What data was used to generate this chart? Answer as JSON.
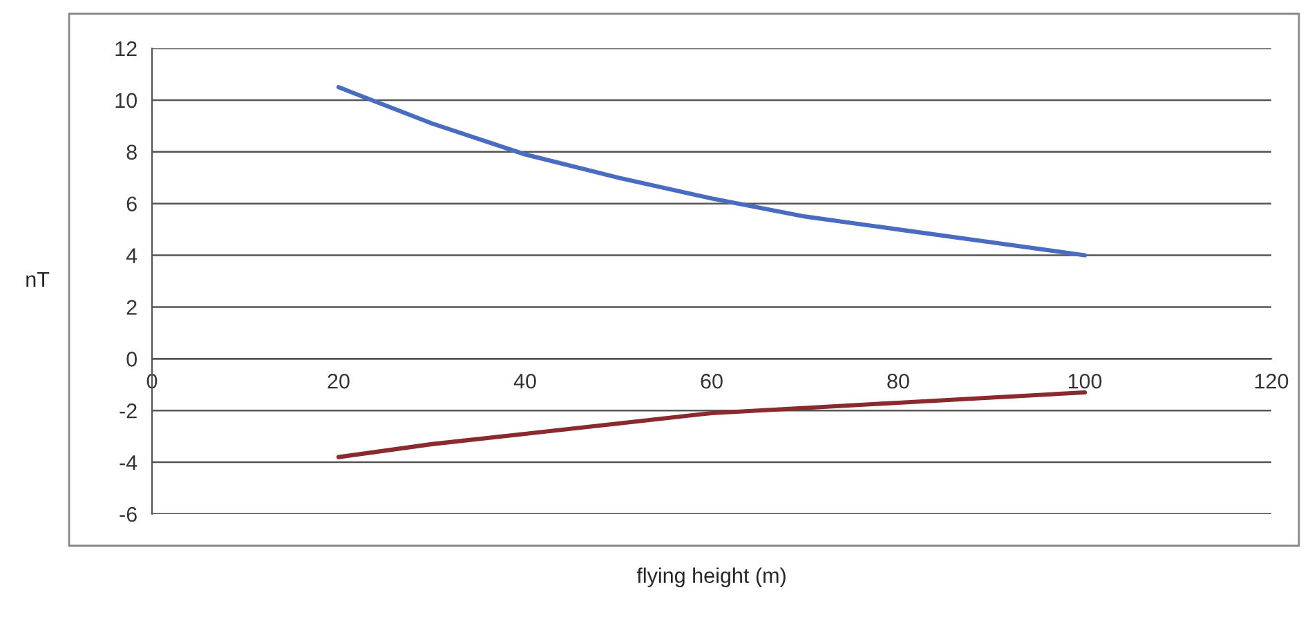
{
  "chart_data": {
    "type": "line",
    "xlabel": "flying height (m)",
    "ylabel": "nT",
    "x": [
      20,
      30,
      40,
      50,
      60,
      70,
      80,
      90,
      100
    ],
    "series": [
      {
        "color": "#4a6cc0",
        "values": [
          10.5,
          9.1,
          7.9,
          7.0,
          6.2,
          5.5,
          5.0,
          4.5,
          4.0
        ]
      },
      {
        "color": "#8b2a2e",
        "values": [
          -3.8,
          -3.3,
          -2.9,
          -2.5,
          -2.1,
          -1.9,
          -1.7,
          -1.5,
          -1.3
        ]
      }
    ],
    "xlim": [
      0,
      120
    ],
    "xticks": [
      0,
      20,
      40,
      60,
      80,
      100,
      120
    ],
    "ylim": [
      -6,
      12
    ],
    "yticks": [
      -6,
      -4,
      -2,
      0,
      2,
      4,
      6,
      8,
      10,
      12
    ],
    "grid": "y",
    "marker": "none",
    "line_style": "solid",
    "legend": false
  }
}
